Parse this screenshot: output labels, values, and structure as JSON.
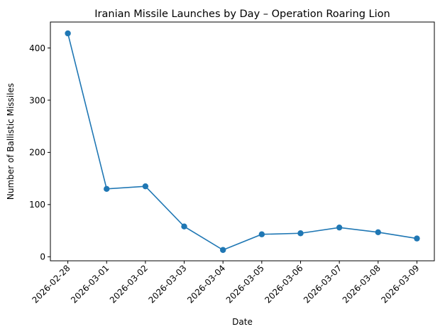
{
  "chart_data": {
    "type": "line",
    "title": "Iranian Missile Launches by Day – Operation Roaring Lion",
    "xlabel": "Date",
    "ylabel": "Number of Ballistic Missiles",
    "categories": [
      "2026-02-28",
      "2026-03-01",
      "2026-03-02",
      "2026-03-03",
      "2026-03-04",
      "2026-03-05",
      "2026-03-06",
      "2026-03-07",
      "2026-03-08",
      "2026-03-09"
    ],
    "series": [
      {
        "values": [
          428,
          130,
          135,
          58,
          13,
          43,
          45,
          56,
          47,
          35
        ]
      }
    ],
    "yticks": [
      0,
      100,
      200,
      300,
      400
    ],
    "ylim": [
      -7.75,
      449.75
    ],
    "grid": false,
    "legend": false,
    "markers": true,
    "colors": {
      "line": "#1f77b4",
      "marker": "#1f77b4"
    }
  }
}
